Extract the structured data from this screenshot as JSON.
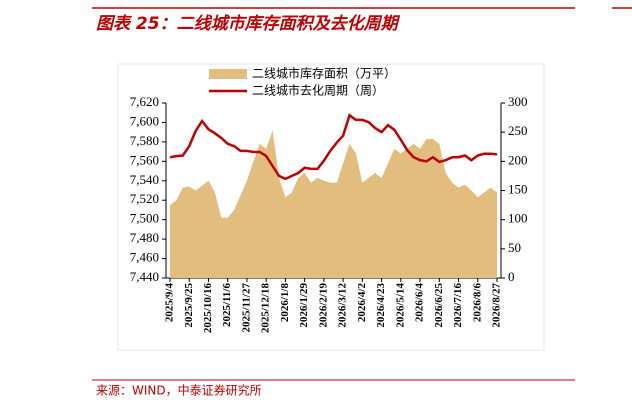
{
  "chart_data": {
    "type": "combo",
    "title": "图表 25：二线城市库存面积及去化周期",
    "source": "来源：WIND，中泰证券研究所",
    "categories": [
      "2025/9/4",
      null,
      null,
      "2025/9/25",
      null,
      null,
      "2025/10/16",
      null,
      null,
      "2025/11/6",
      null,
      null,
      "2025/11/27",
      null,
      null,
      "2025/12/18",
      null,
      null,
      "2026/1/8",
      null,
      null,
      "2026/1/29",
      null,
      null,
      "2026/2/19",
      null,
      null,
      "2026/3/12",
      null,
      null,
      "2026/4/2",
      null,
      null,
      "2026/4/23",
      null,
      null,
      "2026/5/14",
      null,
      null,
      "2026/6/4",
      null,
      null,
      "2026/6/25",
      null,
      null,
      "2026/7/16",
      null,
      null,
      "2026/8/6",
      null,
      null,
      "2026/8/27"
    ],
    "series": [
      {
        "name": "二线城市库存面积（万平）",
        "type": "area",
        "color": "#e2bd7d",
        "axis": "y",
        "values": [
          7515,
          7520,
          7533,
          7534,
          7530,
          7535,
          7540,
          7528,
          7502,
          7502,
          7510,
          7525,
          7540,
          7560,
          7578,
          7573,
          7592,
          7543,
          7523,
          7528,
          7543,
          7548,
          7538,
          7543,
          7540,
          7538,
          7538,
          7558,
          7578,
          7568,
          7538,
          7543,
          7548,
          7543,
          7558,
          7573,
          7568,
          7573,
          7578,
          7573,
          7583,
          7583,
          7578,
          7548,
          7538,
          7533,
          7536,
          7530,
          7523,
          7528,
          7533,
          7528
        ]
      },
      {
        "name": "二线城市去化周期（周）",
        "type": "line",
        "color": "#c00000",
        "axis": "y2",
        "values": [
          207,
          209,
          210,
          226,
          252,
          269,
          255,
          248,
          240,
          230,
          226,
          218,
          218,
          216,
          216,
          209,
          192,
          175,
          170,
          175,
          180,
          189,
          187,
          187,
          201,
          218,
          232,
          244,
          279,
          271,
          271,
          267,
          257,
          250,
          262,
          254,
          237,
          219,
          207,
          202,
          200,
          207,
          199,
          202,
          207,
          207,
          210,
          202,
          210,
          213,
          213,
          212
        ]
      }
    ],
    "ylim": [
      7440,
      7620
    ],
    "yticks": [
      {
        "value": 7440,
        "label": "7,440"
      },
      {
        "value": 7460,
        "label": "7,460"
      },
      {
        "value": 7480,
        "label": "7,480"
      },
      {
        "value": 7500,
        "label": "7,500"
      },
      {
        "value": 7520,
        "label": "7,520"
      },
      {
        "value": 7540,
        "label": "7,540"
      },
      {
        "value": 7560,
        "label": "7,560"
      },
      {
        "value": 7580,
        "label": "7,580"
      },
      {
        "value": 7600,
        "label": "7,600"
      },
      {
        "value": 7620,
        "label": "7,620"
      }
    ],
    "y2lim": [
      0,
      300
    ],
    "y2ticks": [
      0,
      50,
      100,
      150,
      200,
      250,
      300
    ]
  }
}
